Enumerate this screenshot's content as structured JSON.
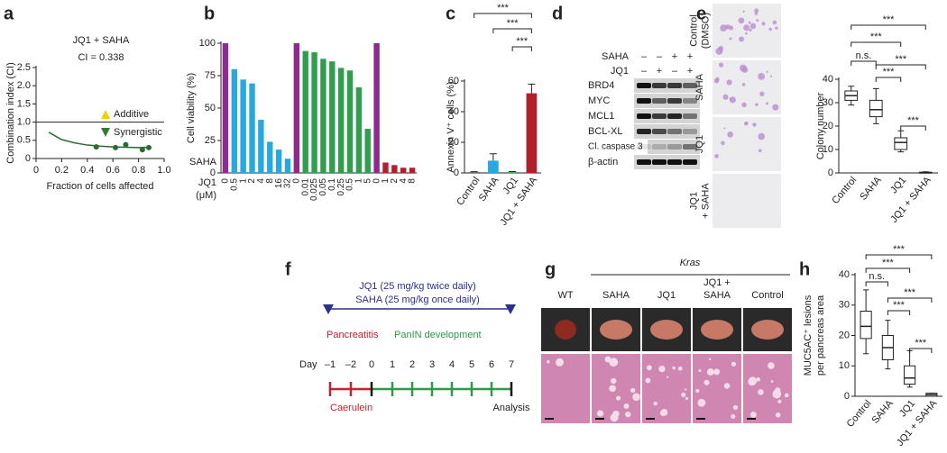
{
  "panel_labels": [
    "a",
    "b",
    "c",
    "d",
    "e",
    "f",
    "g",
    "h"
  ],
  "chart_data": [
    {
      "type": "scatter",
      "title": "JQ1 + SAHA",
      "subtitle": "CI = 0.338",
      "x_label": "Fraction of cells affected",
      "y_label": "Combination index (CI)",
      "x": [
        0.47,
        0.62,
        0.7,
        0.83,
        0.88
      ],
      "values": [
        0.32,
        0.3,
        0.38,
        0.24,
        0.3
      ],
      "color": "#2e6b30",
      "curve": {
        "x": [
          0.1,
          0.2,
          0.3,
          0.4,
          0.5,
          0.6,
          0.7,
          0.8,
          0.9
        ],
        "values": [
          0.72,
          0.52,
          0.43,
          0.37,
          0.34,
          0.32,
          0.31,
          0.3,
          0.31
        ]
      },
      "reference_line": 1,
      "legend": [
        {
          "name": "Additive",
          "color": "#f0d000"
        },
        {
          "name": "Synergistic",
          "color": "#2e7d32"
        }
      ],
      "xlim": [
        0,
        1
      ],
      "ylim": [
        0,
        2.5
      ],
      "xticks": [
        0,
        0.2,
        0.4,
        0.6,
        0.8,
        {
          "value": 1,
          "label": "1.0"
        }
      ],
      "yticks": [
        0,
        0.5,
        {
          "value": 1,
          "label": "1.0"
        },
        1.5,
        {
          "value": 2,
          "label": "2.0"
        },
        2.5
      ]
    },
    {
      "type": "bar",
      "y_label": "Cell viability (%)",
      "row_labels": [
        "SAHA",
        "JQ1",
        "(μM)"
      ],
      "categories": [
        "0",
        "0.5",
        "1",
        "2",
        "4",
        "8",
        "16",
        "32",
        "0",
        "0.01",
        "0.025",
        "0.05",
        "0.1",
        "0.25",
        "0.5",
        "1",
        "5",
        "0",
        "1",
        "2",
        "4",
        "8"
      ],
      "values": [
        100,
        80,
        72,
        69,
        41,
        24,
        18,
        11,
        100,
        94,
        93,
        88,
        86,
        81,
        79,
        66,
        34,
        100,
        8,
        6,
        4,
        4
      ],
      "colors": [
        "#8e2a8e",
        "#29a8e0",
        "#29a8e0",
        "#29a8e0",
        "#29a8e0",
        "#29a8e0",
        "#29a8e0",
        "#29a8e0",
        "#8e2a8e",
        "#2f9e4f",
        "#2f9e4f",
        "#2f9e4f",
        "#2f9e4f",
        "#2f9e4f",
        "#2f9e4f",
        "#2f9e4f",
        "#2f9e4f",
        "#8e2a8e",
        "#b0202a",
        "#b0202a",
        "#b0202a",
        "#b0202a"
      ],
      "ylim": [
        0,
        100
      ],
      "yticks": [
        0,
        25,
        50,
        75,
        100
      ]
    },
    {
      "type": "bar",
      "y_label": "Annexin V⁺ cells (%)",
      "categories": [
        "Control",
        "SAHA",
        "JQ1",
        "JQ1 + SAHA"
      ],
      "values": [
        0.5,
        8,
        0.5,
        52
      ],
      "errors": [
        0.3,
        4.5,
        0.4,
        6
      ],
      "colors": [
        "#555555",
        "#29a8e0",
        "#2f9e4f",
        "#b0202a"
      ],
      "ylim": [
        0,
        60
      ],
      "yticks": [
        0,
        20,
        40,
        60
      ],
      "significance": [
        "***",
        "***",
        "***"
      ]
    },
    {
      "type": "box",
      "y_label": "Colony number",
      "categories": [
        "Control",
        "SAHA",
        "JQ1",
        "JQ1 + SAHA"
      ],
      "min": [
        29,
        21,
        9,
        0
      ],
      "q1": [
        31,
        24,
        10,
        0
      ],
      "median": [
        33,
        27,
        13,
        0
      ],
      "q3": [
        35,
        31,
        15,
        0.3
      ],
      "max": [
        37,
        36,
        18,
        0.5
      ],
      "ylim": [
        0,
        40
      ],
      "yticks": [
        0,
        10,
        20,
        30,
        40
      ],
      "significance": [
        "***",
        "***",
        "n.s.",
        "***",
        "***",
        "***"
      ]
    },
    {
      "type": "box",
      "y_label": [
        "MUC5AC⁺ lesions",
        "per pancreas area"
      ],
      "categories": [
        "Control",
        "SAHA",
        "JQ1",
        "JQ1 + SAHA"
      ],
      "min": [
        14,
        9,
        3,
        0
      ],
      "q1": [
        19,
        12,
        4,
        0
      ],
      "median": [
        23,
        16,
        6,
        0.5
      ],
      "q3": [
        28,
        20,
        10,
        1
      ],
      "max": [
        35,
        25,
        15,
        1
      ],
      "ylim": [
        0,
        40
      ],
      "yticks": [
        0,
        10,
        20,
        30,
        40
      ],
      "significance": [
        "***",
        "***",
        "n.s.",
        "***",
        "***",
        "***"
      ]
    }
  ],
  "blot": {
    "treatments": [
      {
        "name": "SAHA",
        "signs": [
          "–",
          "–",
          "+",
          "+"
        ]
      },
      {
        "name": "JQ1",
        "signs": [
          "–",
          "+",
          "–",
          "+"
        ]
      }
    ],
    "bands": [
      "BRD4",
      "MYC",
      "MCL1",
      "BCL-XL",
      "Cl. caspase 3",
      "β-actin"
    ]
  },
  "colony_images": {
    "labels": [
      [
        "Control",
        "(DMSO)"
      ],
      [
        "SAHA"
      ],
      [
        "JQ1"
      ],
      [
        "JQ1",
        "+ SAHA"
      ]
    ]
  },
  "timeline": {
    "dosing": [
      "JQ1 (25 mg/kg twice daily)",
      "SAHA (25 mg/kg once daily)"
    ],
    "phases": [
      "Pancreatitis",
      "PanIN development"
    ],
    "day_label": "Day",
    "days": [
      "–1",
      "–2",
      "0",
      "1",
      "2",
      "3",
      "4",
      "5",
      "6",
      "7"
    ],
    "start_label": "Caerulein",
    "end_label": "Analysis"
  },
  "tissue": {
    "group_label": "Kras",
    "columns": [
      [
        "WT"
      ],
      [
        "SAHA"
      ],
      [
        "JQ1"
      ],
      [
        "JQ1 +",
        "SAHA"
      ],
      [
        "Control"
      ]
    ]
  }
}
